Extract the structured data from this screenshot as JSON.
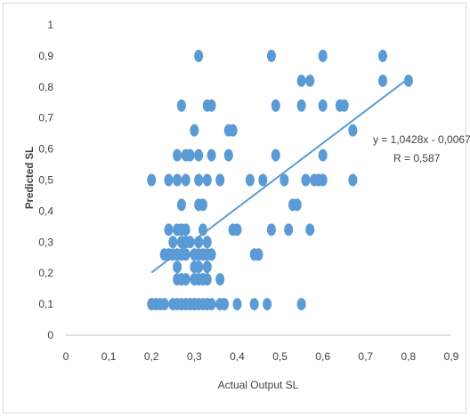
{
  "chart_data": {
    "type": "scatter",
    "title": "",
    "xlabel": "Actual Output SL",
    "ylabel": "Predicted SL",
    "xlim": [
      0,
      0.9
    ],
    "ylim": [
      0,
      1
    ],
    "x_ticks": [
      "0",
      "0,1",
      "0,2",
      "0,3",
      "0,4",
      "0,5",
      "0,6",
      "0,7",
      "0,8",
      "0,9"
    ],
    "y_ticks": [
      "0",
      "0,1",
      "0,2",
      "0,3",
      "0,4",
      "0,5",
      "0,6",
      "0,7",
      "0,8",
      "0,9",
      "1"
    ],
    "grid": false,
    "legend": "none",
    "marker_color": "#5b9bd5",
    "trendline": {
      "equation": "y = 1,0428x - 0,0067",
      "r_label": "R = 0,587",
      "slope": 1.0428,
      "intercept": -0.0067,
      "x_range": [
        0.2,
        0.8
      ]
    },
    "points": [
      {
        "x": 0.2,
        "y": 0.1
      },
      {
        "x": 0.21,
        "y": 0.1
      },
      {
        "x": 0.22,
        "y": 0.1
      },
      {
        "x": 0.23,
        "y": 0.1
      },
      {
        "x": 0.25,
        "y": 0.1
      },
      {
        "x": 0.26,
        "y": 0.1
      },
      {
        "x": 0.27,
        "y": 0.1
      },
      {
        "x": 0.28,
        "y": 0.1
      },
      {
        "x": 0.29,
        "y": 0.1
      },
      {
        "x": 0.3,
        "y": 0.1
      },
      {
        "x": 0.31,
        "y": 0.1
      },
      {
        "x": 0.32,
        "y": 0.1
      },
      {
        "x": 0.33,
        "y": 0.1
      },
      {
        "x": 0.34,
        "y": 0.1
      },
      {
        "x": 0.36,
        "y": 0.1
      },
      {
        "x": 0.37,
        "y": 0.1
      },
      {
        "x": 0.4,
        "y": 0.1
      },
      {
        "x": 0.44,
        "y": 0.1
      },
      {
        "x": 0.47,
        "y": 0.1
      },
      {
        "x": 0.55,
        "y": 0.1
      },
      {
        "x": 0.26,
        "y": 0.18
      },
      {
        "x": 0.27,
        "y": 0.18
      },
      {
        "x": 0.28,
        "y": 0.18
      },
      {
        "x": 0.3,
        "y": 0.18
      },
      {
        "x": 0.31,
        "y": 0.18
      },
      {
        "x": 0.32,
        "y": 0.18
      },
      {
        "x": 0.33,
        "y": 0.18
      },
      {
        "x": 0.36,
        "y": 0.18
      },
      {
        "x": 0.26,
        "y": 0.22
      },
      {
        "x": 0.3,
        "y": 0.22
      },
      {
        "x": 0.31,
        "y": 0.22
      },
      {
        "x": 0.33,
        "y": 0.22
      },
      {
        "x": 0.23,
        "y": 0.26
      },
      {
        "x": 0.24,
        "y": 0.26
      },
      {
        "x": 0.25,
        "y": 0.26
      },
      {
        "x": 0.26,
        "y": 0.26
      },
      {
        "x": 0.27,
        "y": 0.26
      },
      {
        "x": 0.28,
        "y": 0.26
      },
      {
        "x": 0.3,
        "y": 0.26
      },
      {
        "x": 0.31,
        "y": 0.26
      },
      {
        "x": 0.32,
        "y": 0.26
      },
      {
        "x": 0.33,
        "y": 0.26
      },
      {
        "x": 0.34,
        "y": 0.26
      },
      {
        "x": 0.44,
        "y": 0.26
      },
      {
        "x": 0.45,
        "y": 0.26
      },
      {
        "x": 0.25,
        "y": 0.3
      },
      {
        "x": 0.27,
        "y": 0.3
      },
      {
        "x": 0.28,
        "y": 0.3
      },
      {
        "x": 0.29,
        "y": 0.3
      },
      {
        "x": 0.31,
        "y": 0.3
      },
      {
        "x": 0.33,
        "y": 0.3
      },
      {
        "x": 0.24,
        "y": 0.34
      },
      {
        "x": 0.26,
        "y": 0.34
      },
      {
        "x": 0.27,
        "y": 0.34
      },
      {
        "x": 0.28,
        "y": 0.34
      },
      {
        "x": 0.32,
        "y": 0.34
      },
      {
        "x": 0.39,
        "y": 0.34
      },
      {
        "x": 0.4,
        "y": 0.34
      },
      {
        "x": 0.48,
        "y": 0.34
      },
      {
        "x": 0.52,
        "y": 0.34
      },
      {
        "x": 0.57,
        "y": 0.34
      },
      {
        "x": 0.27,
        "y": 0.42
      },
      {
        "x": 0.31,
        "y": 0.42
      },
      {
        "x": 0.32,
        "y": 0.42
      },
      {
        "x": 0.53,
        "y": 0.42
      },
      {
        "x": 0.54,
        "y": 0.42
      },
      {
        "x": 0.2,
        "y": 0.5
      },
      {
        "x": 0.24,
        "y": 0.5
      },
      {
        "x": 0.26,
        "y": 0.5
      },
      {
        "x": 0.28,
        "y": 0.5
      },
      {
        "x": 0.31,
        "y": 0.5
      },
      {
        "x": 0.33,
        "y": 0.5
      },
      {
        "x": 0.36,
        "y": 0.5
      },
      {
        "x": 0.43,
        "y": 0.5
      },
      {
        "x": 0.46,
        "y": 0.5
      },
      {
        "x": 0.51,
        "y": 0.5
      },
      {
        "x": 0.56,
        "y": 0.5
      },
      {
        "x": 0.58,
        "y": 0.5
      },
      {
        "x": 0.59,
        "y": 0.5
      },
      {
        "x": 0.6,
        "y": 0.5
      },
      {
        "x": 0.67,
        "y": 0.5
      },
      {
        "x": 0.26,
        "y": 0.58
      },
      {
        "x": 0.28,
        "y": 0.58
      },
      {
        "x": 0.29,
        "y": 0.58
      },
      {
        "x": 0.31,
        "y": 0.58
      },
      {
        "x": 0.34,
        "y": 0.58
      },
      {
        "x": 0.38,
        "y": 0.58
      },
      {
        "x": 0.49,
        "y": 0.58
      },
      {
        "x": 0.6,
        "y": 0.58
      },
      {
        "x": 0.3,
        "y": 0.66
      },
      {
        "x": 0.38,
        "y": 0.66
      },
      {
        "x": 0.39,
        "y": 0.66
      },
      {
        "x": 0.67,
        "y": 0.66
      },
      {
        "x": 0.27,
        "y": 0.74
      },
      {
        "x": 0.33,
        "y": 0.74
      },
      {
        "x": 0.34,
        "y": 0.74
      },
      {
        "x": 0.49,
        "y": 0.74
      },
      {
        "x": 0.55,
        "y": 0.74
      },
      {
        "x": 0.6,
        "y": 0.74
      },
      {
        "x": 0.64,
        "y": 0.74
      },
      {
        "x": 0.65,
        "y": 0.74
      },
      {
        "x": 0.55,
        "y": 0.82
      },
      {
        "x": 0.57,
        "y": 0.82
      },
      {
        "x": 0.74,
        "y": 0.82
      },
      {
        "x": 0.8,
        "y": 0.82
      },
      {
        "x": 0.31,
        "y": 0.9
      },
      {
        "x": 0.48,
        "y": 0.9
      },
      {
        "x": 0.6,
        "y": 0.9
      },
      {
        "x": 0.74,
        "y": 0.9
      }
    ]
  }
}
